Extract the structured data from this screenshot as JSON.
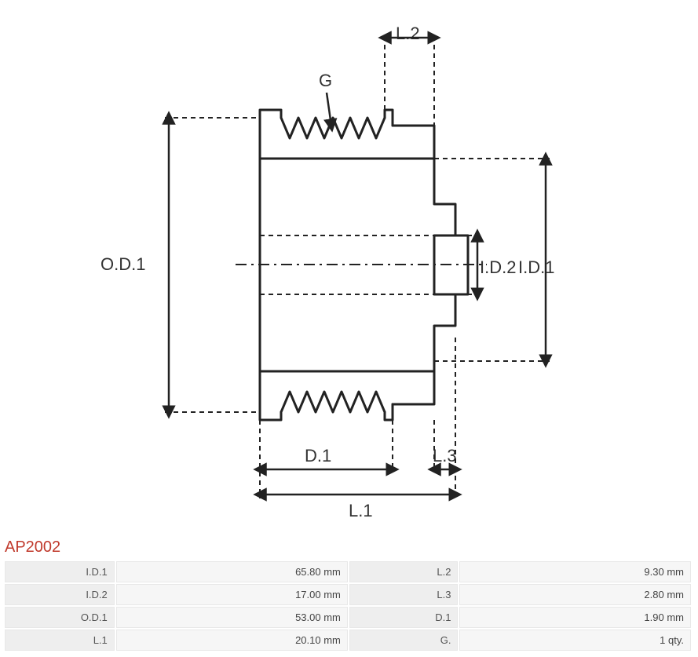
{
  "part_code": "AP2002",
  "diagram": {
    "stroke": "#222222",
    "stroke_width": 3,
    "dash": "6,5",
    "labels": {
      "OD1": "O.D.1",
      "ID1": "I.D.1",
      "ID2": "I.D.2",
      "L1": "L.1",
      "L2": "L.2",
      "L3": "L.3",
      "D1": "D.1",
      "G": "G"
    }
  },
  "spec_rows": [
    {
      "k1": "I.D.1",
      "v1": "65.80 mm",
      "k2": "L.2",
      "v2": "9.30 mm"
    },
    {
      "k1": "I.D.2",
      "v1": "17.00 mm",
      "k2": "L.3",
      "v2": "2.80 mm"
    },
    {
      "k1": "O.D.1",
      "v1": "53.00 mm",
      "k2": "D.1",
      "v2": "1.90 mm"
    },
    {
      "k1": "L.1",
      "v1": "20.10 mm",
      "k2": "G.",
      "v2": "1 qty."
    }
  ]
}
